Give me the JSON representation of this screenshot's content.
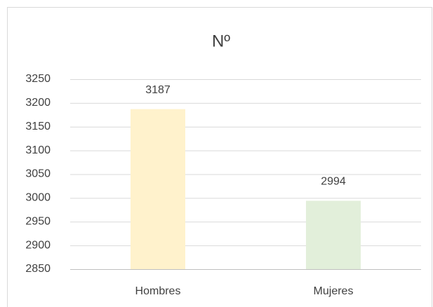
{
  "chart_data": {
    "type": "bar",
    "title": "Nº",
    "categories": [
      "Hombres",
      "Mujeres"
    ],
    "values": [
      3187,
      2994
    ],
    "colors": [
      "#fff2cc",
      "#e2efda"
    ],
    "ylim": [
      2850,
      3250
    ],
    "yticks": [
      2850,
      2900,
      2950,
      3000,
      3050,
      3100,
      3150,
      3200,
      3250
    ],
    "grid": true,
    "data_labels": true
  }
}
